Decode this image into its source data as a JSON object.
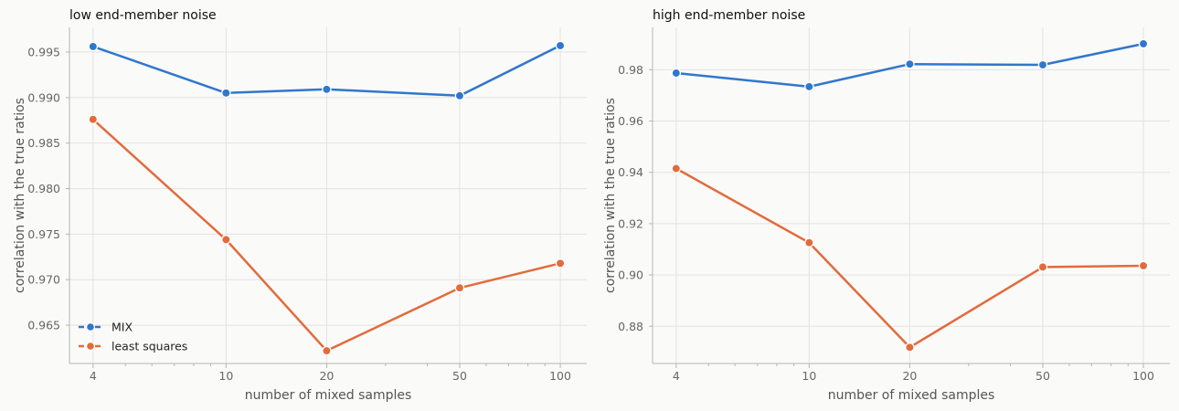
{
  "chart_data": [
    {
      "type": "line",
      "title": "low end-member noise",
      "xlabel": "number of mixed samples",
      "ylabel": "correlation with the true ratios",
      "xscale": "log",
      "xlim": [
        3.4,
        120
      ],
      "ylim": [
        0.9608,
        0.9977
      ],
      "x": [
        4,
        10,
        20,
        50,
        100
      ],
      "x_tick_labels": [
        "4",
        "10",
        "20",
        "50",
        "100"
      ],
      "y_ticks": [
        0.965,
        0.97,
        0.975,
        0.98,
        0.985,
        0.99,
        0.995
      ],
      "y_tick_labels": [
        "0.965",
        "0.970",
        "0.975",
        "0.980",
        "0.985",
        "0.990",
        "0.995"
      ],
      "grid": true,
      "legend": "lower-left",
      "series": [
        {
          "name": "MIX",
          "color": "#3077cc",
          "values": [
            0.9956,
            0.9905,
            0.9909,
            0.9902,
            0.9957
          ]
        },
        {
          "name": "least squares",
          "color": "#e26b3c",
          "values": [
            0.9876,
            0.9744,
            0.9622,
            0.9691,
            0.9718
          ]
        }
      ]
    },
    {
      "type": "line",
      "title": "high end-member noise",
      "xlabel": "number of mixed samples",
      "ylabel": "correlation with the true ratios",
      "xscale": "log",
      "xlim": [
        3.4,
        120
      ],
      "ylim": [
        0.8655,
        0.9965
      ],
      "x": [
        4,
        10,
        20,
        50,
        100
      ],
      "x_tick_labels": [
        "4",
        "10",
        "20",
        "50",
        "100"
      ],
      "y_ticks": [
        0.88,
        0.9,
        0.92,
        0.94,
        0.96,
        0.98
      ],
      "y_tick_labels": [
        "0.88",
        "0.90",
        "0.92",
        "0.94",
        "0.96",
        "0.98"
      ],
      "grid": true,
      "legend": "",
      "series": [
        {
          "name": "MIX",
          "color": "#3077cc",
          "values": [
            0.9787,
            0.9734,
            0.9822,
            0.9819,
            0.9901
          ]
        },
        {
          "name": "least squares",
          "color": "#e26b3c",
          "values": [
            0.9415,
            0.9126,
            0.8718,
            0.9031,
            0.9036
          ]
        }
      ]
    }
  ]
}
